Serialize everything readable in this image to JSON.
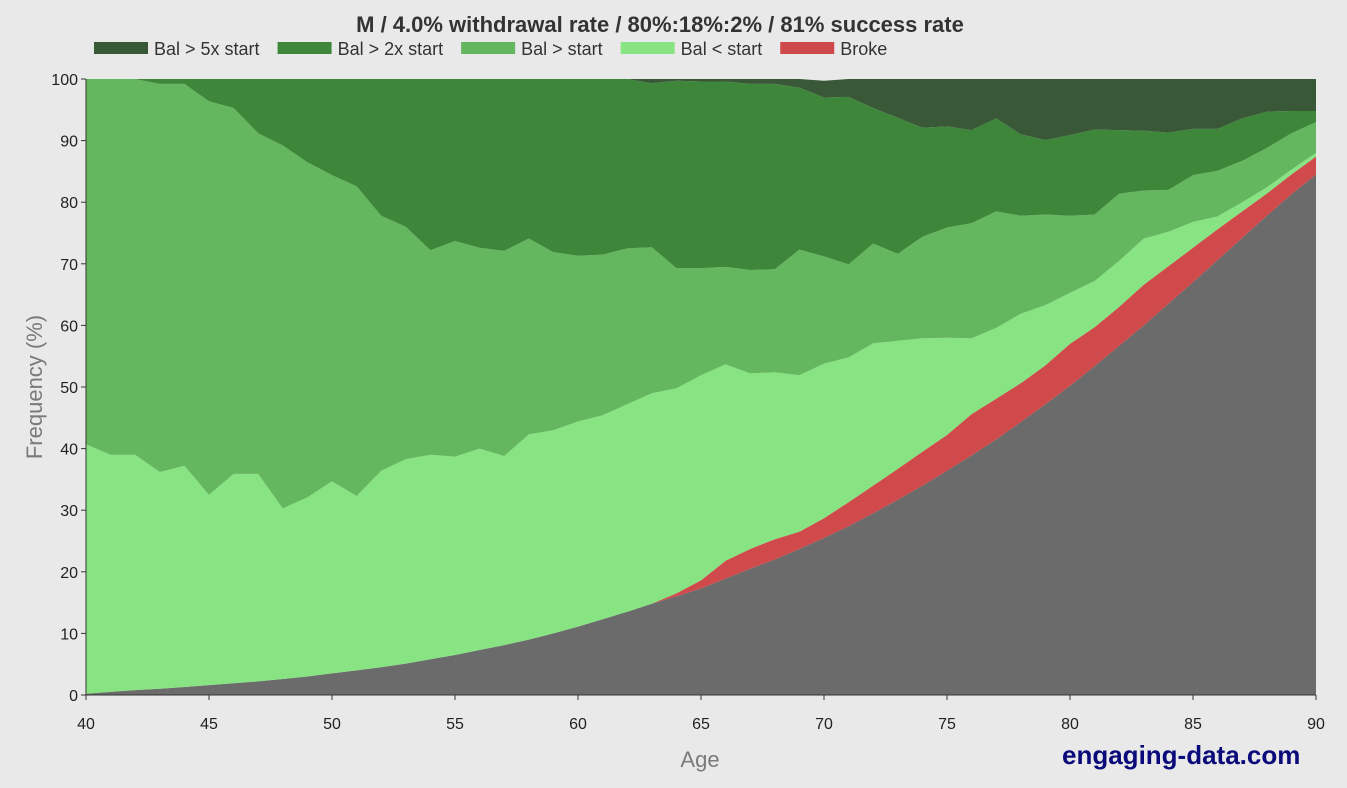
{
  "brand": "engaging-data.com",
  "chart_data": {
    "type": "area",
    "stacked": true,
    "title": "M / 4.0% withdrawal rate / 80%:18%:2% / 81% success rate",
    "xlabel": "Age",
    "ylabel": "Frequency (%)",
    "xlim": [
      40,
      90
    ],
    "ylim": [
      0,
      100
    ],
    "xticks": [
      40,
      45,
      50,
      55,
      60,
      65,
      70,
      75,
      80,
      85,
      90
    ],
    "yticks": [
      0,
      10,
      20,
      30,
      40,
      50,
      60,
      70,
      80,
      90,
      100
    ],
    "legend_position": "top",
    "x": [
      40,
      41,
      42,
      43,
      44,
      45,
      46,
      47,
      48,
      49,
      50,
      51,
      52,
      53,
      54,
      55,
      56,
      57,
      58,
      59,
      60,
      61,
      62,
      63,
      64,
      65,
      66,
      67,
      68,
      69,
      70,
      71,
      72,
      73,
      74,
      75,
      76,
      77,
      78,
      79,
      80,
      81,
      82,
      83,
      84,
      85,
      86,
      87,
      88,
      89,
      90
    ],
    "series": [
      {
        "name": "",
        "color": "#6b6b6b",
        "values": [
          0.2,
          0.5,
          0.8,
          1.0,
          1.3,
          1.6,
          1.9,
          2.2,
          2.6,
          3.0,
          3.5,
          4.0,
          4.5,
          5.1,
          5.8,
          6.5,
          7.3,
          8.1,
          9.0,
          10.0,
          11.1,
          12.3,
          13.5,
          14.8,
          16.0,
          17.3,
          18.9,
          20.5,
          22.0,
          23.7,
          25.5,
          27.4,
          29.5,
          31.7,
          34.0,
          36.4,
          38.9,
          41.5,
          44.3,
          47.2,
          50.2,
          53.4,
          56.7,
          60.0,
          63.5,
          67.0,
          70.6,
          74.2,
          77.8,
          81.3,
          84.5
        ]
      },
      {
        "name": "Broke",
        "color": "#d0494b",
        "values": [
          0,
          0,
          0,
          0,
          0,
          0,
          0,
          0,
          0,
          0,
          0,
          0,
          0,
          0,
          0,
          0,
          0,
          0,
          0,
          0,
          0,
          0,
          0,
          0,
          0.5,
          1.3,
          2.9,
          3.2,
          3.3,
          2.8,
          3.2,
          3.9,
          4.5,
          5.0,
          5.5,
          5.8,
          6.7,
          6.6,
          6.3,
          6.3,
          6.8,
          6.3,
          6.3,
          6.6,
          6.1,
          5.6,
          5.0,
          4.3,
          3.6,
          3.2,
          2.9
        ]
      },
      {
        "name": "Bal < start",
        "color": "#88e383",
        "values": [
          40.5,
          38.5,
          38.2,
          35.2,
          35.9,
          30.9,
          34.0,
          33.7,
          27.7,
          29.1,
          31.2,
          28.3,
          31.9,
          33.2,
          33.2,
          32.2,
          32.7,
          30.7,
          33.3,
          33.0,
          33.3,
          33.1,
          33.7,
          34.2,
          33.3,
          33.3,
          31.9,
          28.5,
          27.1,
          25.4,
          25.1,
          23.5,
          23.1,
          20.8,
          18.4,
          15.8,
          12.3,
          11.5,
          11.3,
          9.8,
          8.3,
          7.5,
          7.5,
          7.5,
          5.6,
          4.2,
          2.1,
          1.5,
          1.0,
          0.8,
          0.6
        ]
      },
      {
        "name": "Bal > start",
        "color": "#64b75e",
        "values": [
          59.3,
          61.0,
          61.0,
          63.0,
          62.0,
          63.9,
          59.4,
          55.3,
          58.9,
          54.4,
          49.7,
          50.3,
          41.4,
          37.7,
          33.2,
          35.0,
          32.6,
          33.3,
          31.8,
          28.9,
          26.9,
          26.1,
          25.3,
          23.7,
          19.5,
          17.4,
          15.8,
          16.8,
          16.7,
          20.4,
          17.4,
          15.1,
          16.2,
          14.1,
          16.5,
          17.9,
          18.7,
          18.9,
          15.9,
          14.7,
          12.5,
          10.8,
          10.9,
          7.8,
          6.8,
          7.6,
          7.4,
          6.7,
          6.4,
          5.9,
          5.0
        ]
      },
      {
        "name": "Bal > 2x start",
        "color": "#3e873a",
        "values": [
          0,
          0,
          0,
          0.8,
          0.8,
          3.6,
          4.7,
          8.8,
          10.8,
          13.5,
          15.6,
          17.4,
          22.2,
          24.0,
          27.8,
          26.3,
          27.4,
          27.9,
          25.9,
          28.1,
          28.7,
          28.5,
          27.5,
          26.6,
          30.4,
          30.3,
          30.1,
          30.2,
          30.1,
          26.3,
          25.8,
          27.2,
          22.0,
          22.1,
          17.7,
          16.4,
          15.1,
          15.1,
          13.2,
          12.1,
          13.1,
          13.8,
          10.3,
          9.7,
          9.3,
          7.5,
          6.8,
          6.9,
          5.9,
          3.6,
          1.8
        ]
      },
      {
        "name": "Bal > 5x start",
        "color": "#385838",
        "values": [
          0,
          0,
          0,
          0,
          0,
          0,
          0,
          0,
          0,
          0,
          0,
          0,
          0,
          0,
          0,
          0,
          0,
          0,
          0,
          0,
          0,
          0,
          0,
          0.7,
          0.3,
          0.4,
          0.4,
          0.8,
          0.8,
          1.4,
          2.7,
          2.9,
          4.7,
          6.3,
          7.9,
          7.7,
          8.3,
          8.4,
          9.0,
          9.9,
          9.1,
          8.2,
          8.3,
          8.4,
          8.7,
          8.1,
          8.1,
          6.4,
          5.3,
          5.2,
          5.2
        ]
      }
    ],
    "legend": [
      {
        "name": "Bal > 5x start",
        "color": "#385838"
      },
      {
        "name": "Bal > 2x start",
        "color": "#3e873a"
      },
      {
        "name": "Bal > start",
        "color": "#64b75e"
      },
      {
        "name": "Bal < start",
        "color": "#88e383"
      },
      {
        "name": "Broke",
        "color": "#d0494b"
      }
    ]
  }
}
